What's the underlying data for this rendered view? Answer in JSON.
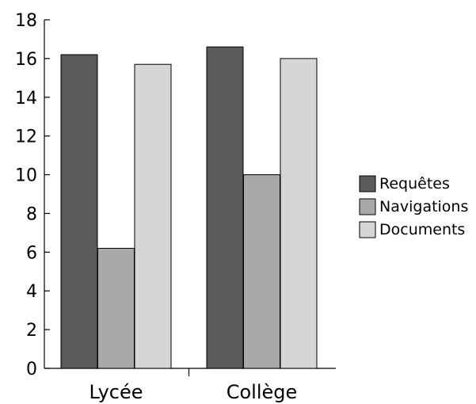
{
  "chart_data": {
    "type": "bar",
    "categories": [
      "Lycée",
      "Collège"
    ],
    "series": [
      {
        "name": "Requêtes",
        "values": [
          16.2,
          16.6
        ],
        "color": "#5a5a5a"
      },
      {
        "name": "Navigations",
        "values": [
          6.2,
          10.0
        ],
        "color": "#a8a8a8"
      },
      {
        "name": "Documents",
        "values": [
          15.7,
          16.0
        ],
        "color": "#d6d6d6"
      }
    ],
    "ylim": [
      0,
      18
    ],
    "yticks": [
      0,
      2,
      4,
      6,
      8,
      10,
      12,
      14,
      16,
      18
    ],
    "title": "",
    "xlabel": "",
    "ylabel": "",
    "grid": false,
    "legend_position": "right"
  }
}
